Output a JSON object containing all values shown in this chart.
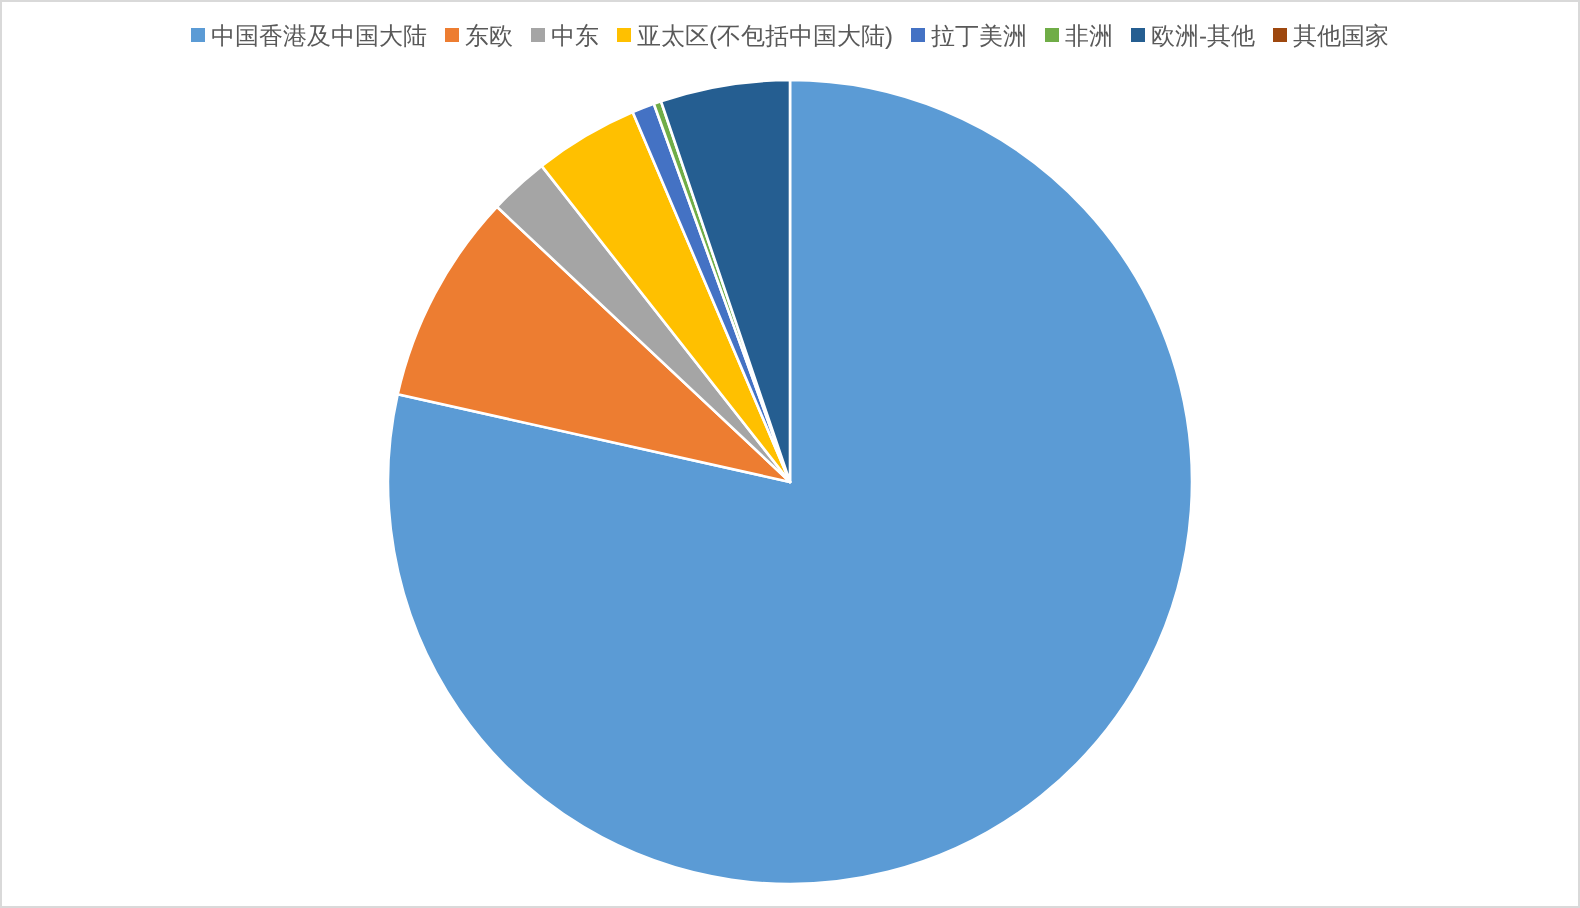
{
  "chart_data": {
    "type": "pie",
    "categories": [
      "中国香港及中国大陆",
      "东欧",
      "中东",
      "亚太区(不包括中国大陆)",
      "拉丁美洲",
      "非洲",
      "欧洲-其他",
      "其他国家"
    ],
    "values": [
      78.5,
      8.5,
      2.4,
      4.2,
      0.9,
      0.3,
      5.2,
      0
    ],
    "colors": [
      "#5b9bd5",
      "#ed7d31",
      "#a5a5a5",
      "#ffc000",
      "#4472c4",
      "#70ad47",
      "#255e91",
      "#9e480e"
    ],
    "legend": "top"
  }
}
